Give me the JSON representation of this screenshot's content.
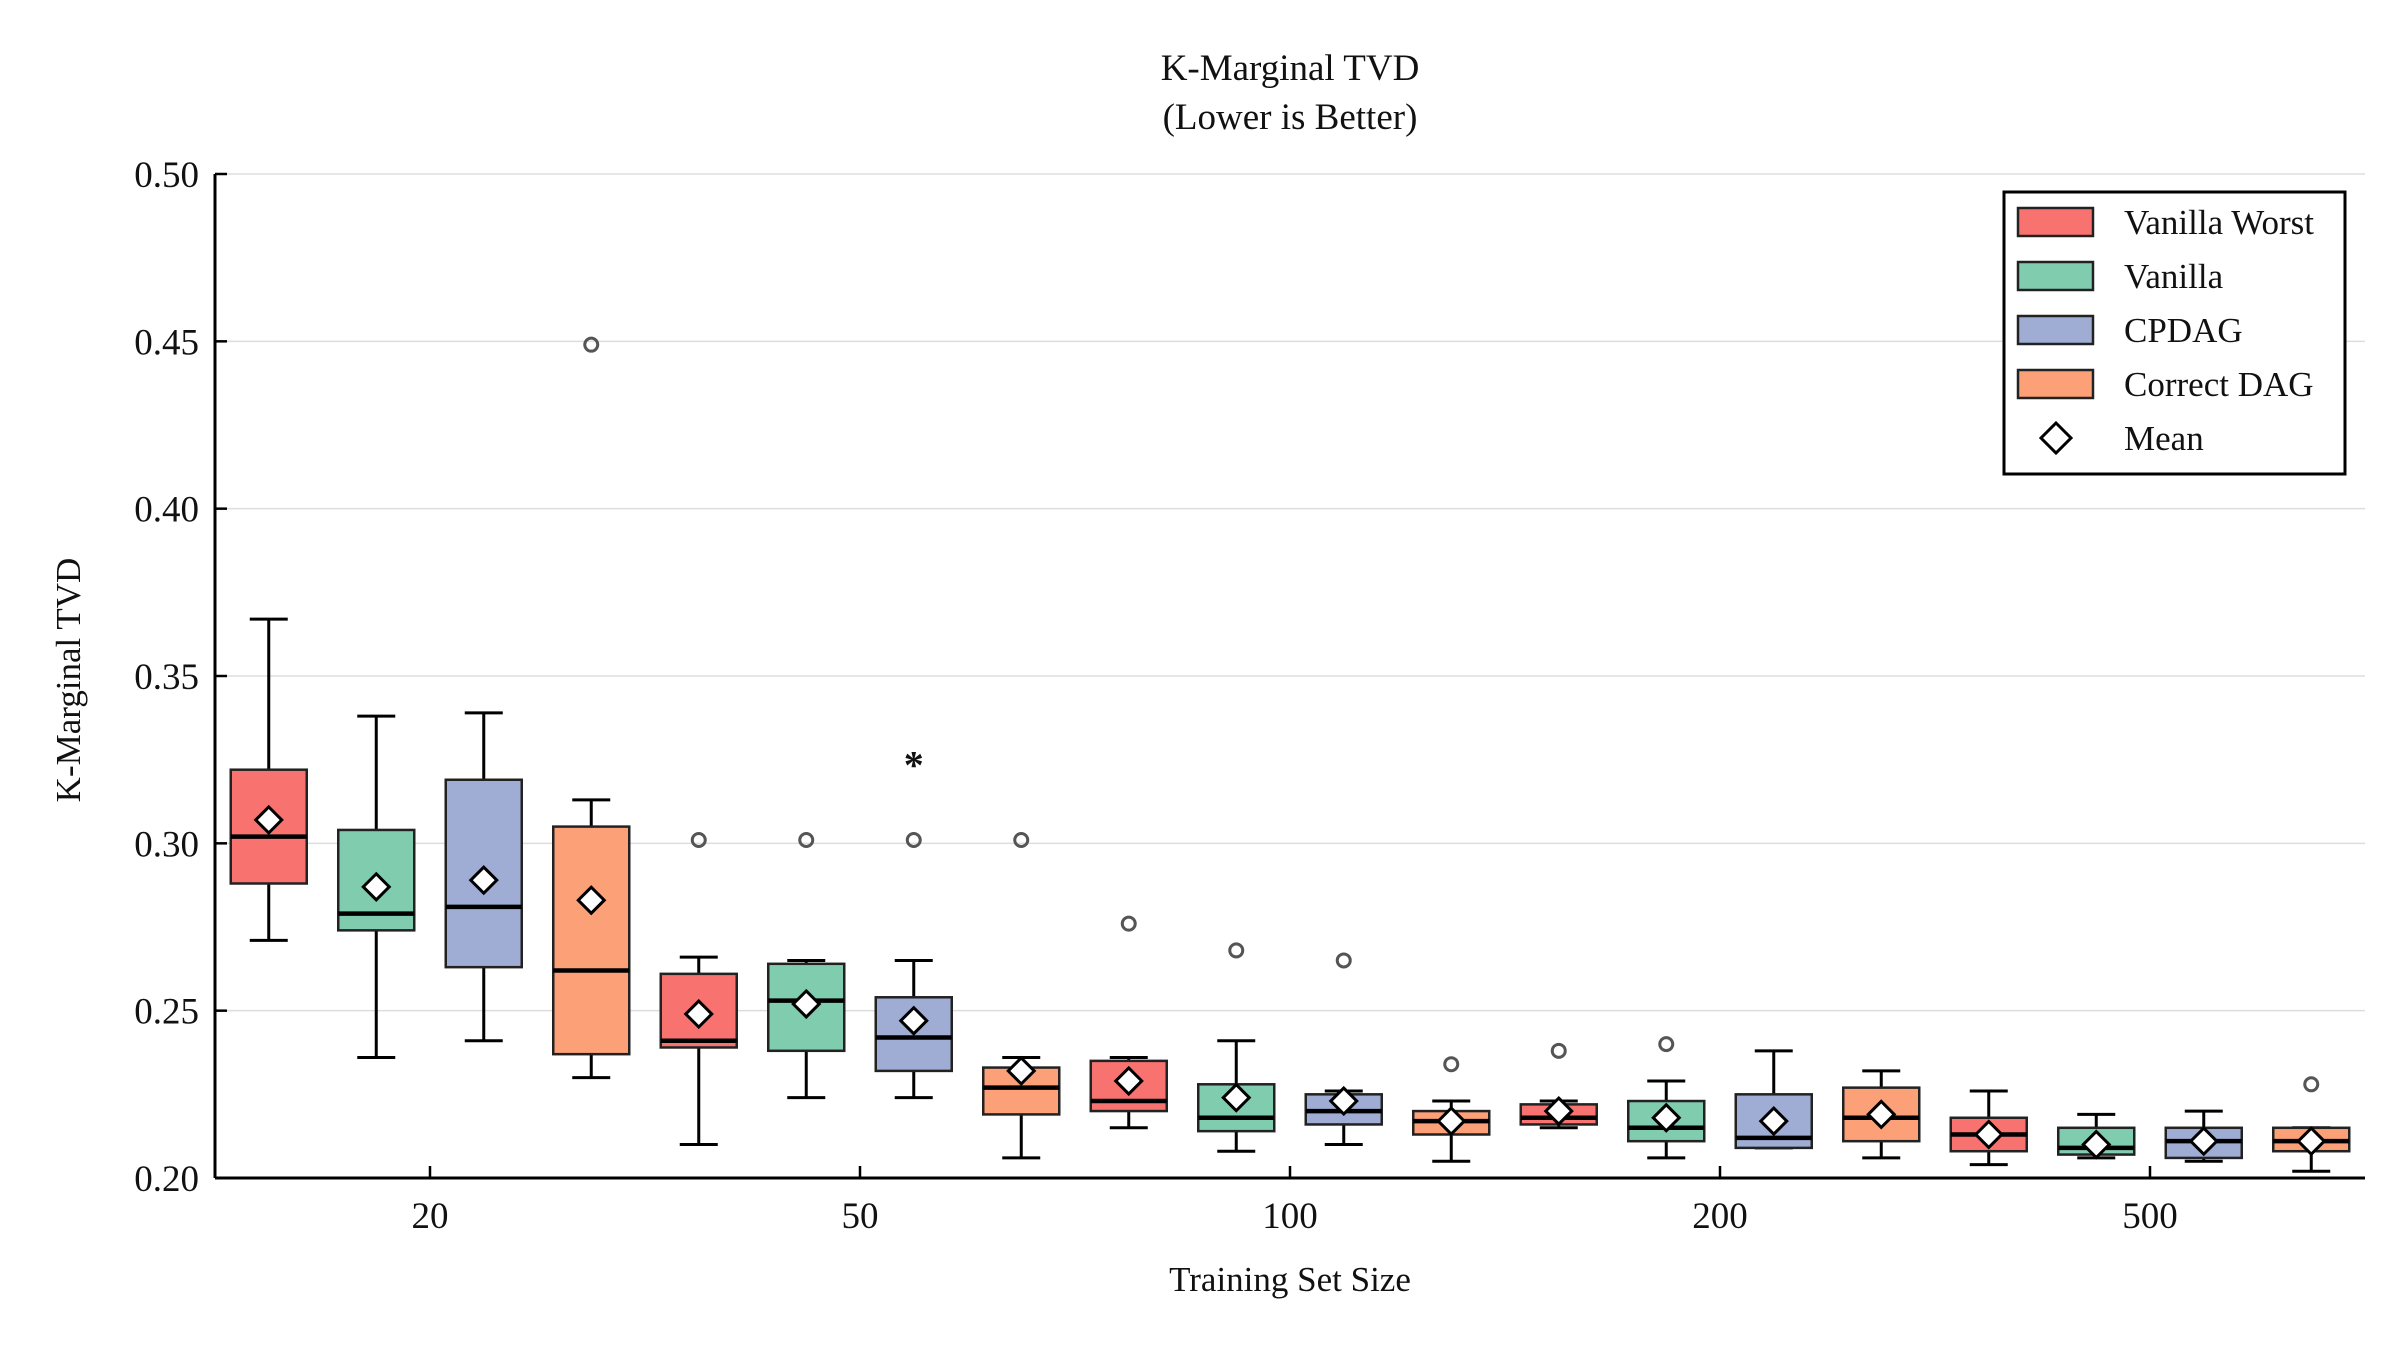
{
  "chart_data": {
    "type": "box",
    "title": "K-Marginal TVD",
    "subtitle": "(Lower is Better)",
    "xlabel": "Training Set Size",
    "ylabel": "K-Marginal TVD",
    "ylim": [
      0.2,
      0.5
    ],
    "yticks": [
      "0.20",
      "0.25",
      "0.30",
      "0.35",
      "0.40",
      "0.45",
      "0.50"
    ],
    "categories": [
      "20",
      "50",
      "100",
      "200",
      "500"
    ],
    "grid": true,
    "legend": "top-right",
    "legend_entries": [
      "Vanilla Worst",
      "Vanilla",
      "CPDAG",
      "Correct DAG",
      "Mean"
    ],
    "series": [
      {
        "name": "Vanilla Worst",
        "color": "#f8726f",
        "boxes": [
          {
            "whisker_low": 0.271,
            "q1": 0.288,
            "median": 0.302,
            "q3": 0.322,
            "whisker_high": 0.367,
            "mean": 0.307,
            "outliers": []
          },
          {
            "whisker_low": 0.21,
            "q1": 0.239,
            "median": 0.241,
            "q3": 0.261,
            "whisker_high": 0.266,
            "mean": 0.249,
            "outliers": [
              0.301
            ]
          },
          {
            "whisker_low": 0.215,
            "q1": 0.22,
            "median": 0.223,
            "q3": 0.235,
            "whisker_high": 0.236,
            "mean": 0.229,
            "outliers": [
              0.276
            ]
          },
          {
            "whisker_low": 0.215,
            "q1": 0.216,
            "median": 0.218,
            "q3": 0.222,
            "whisker_high": 0.223,
            "mean": 0.22,
            "outliers": [
              0.238
            ]
          },
          {
            "whisker_low": 0.204,
            "q1": 0.208,
            "median": 0.213,
            "q3": 0.218,
            "whisker_high": 0.226,
            "mean": 0.213,
            "outliers": []
          }
        ]
      },
      {
        "name": "Vanilla",
        "color": "#7fcdae",
        "boxes": [
          {
            "whisker_low": 0.236,
            "q1": 0.274,
            "median": 0.279,
            "q3": 0.304,
            "whisker_high": 0.338,
            "mean": 0.287,
            "outliers": []
          },
          {
            "whisker_low": 0.224,
            "q1": 0.238,
            "median": 0.253,
            "q3": 0.264,
            "whisker_high": 0.265,
            "mean": 0.252,
            "outliers": [
              0.301
            ]
          },
          {
            "whisker_low": 0.208,
            "q1": 0.214,
            "median": 0.218,
            "q3": 0.228,
            "whisker_high": 0.241,
            "mean": 0.224,
            "outliers": [
              0.268
            ]
          },
          {
            "whisker_low": 0.206,
            "q1": 0.211,
            "median": 0.215,
            "q3": 0.223,
            "whisker_high": 0.229,
            "mean": 0.218,
            "outliers": [
              0.24
            ]
          },
          {
            "whisker_low": 0.206,
            "q1": 0.207,
            "median": 0.209,
            "q3": 0.215,
            "whisker_high": 0.219,
            "mean": 0.21,
            "outliers": []
          }
        ]
      },
      {
        "name": "CPDAG",
        "color": "#9fadd5",
        "boxes": [
          {
            "whisker_low": 0.241,
            "q1": 0.263,
            "median": 0.281,
            "q3": 0.319,
            "whisker_high": 0.339,
            "mean": 0.289,
            "outliers": []
          },
          {
            "whisker_low": 0.224,
            "q1": 0.232,
            "median": 0.242,
            "q3": 0.254,
            "whisker_high": 0.265,
            "mean": 0.247,
            "outliers": [
              0.301
            ],
            "extreme": [
              0.326
            ]
          },
          {
            "whisker_low": 0.21,
            "q1": 0.216,
            "median": 0.22,
            "q3": 0.225,
            "whisker_high": 0.226,
            "mean": 0.223,
            "outliers": [
              0.265
            ]
          },
          {
            "whisker_low": 0.209,
            "q1": 0.209,
            "median": 0.212,
            "q3": 0.225,
            "whisker_high": 0.238,
            "mean": 0.217,
            "outliers": []
          },
          {
            "whisker_low": 0.205,
            "q1": 0.206,
            "median": 0.211,
            "q3": 0.215,
            "whisker_high": 0.22,
            "mean": 0.211,
            "outliers": []
          }
        ]
      },
      {
        "name": "Correct DAG",
        "color": "#fca077",
        "boxes": [
          {
            "whisker_low": 0.23,
            "q1": 0.237,
            "median": 0.262,
            "q3": 0.305,
            "whisker_high": 0.313,
            "mean": 0.283,
            "outliers": [
              0.449
            ]
          },
          {
            "whisker_low": 0.206,
            "q1": 0.219,
            "median": 0.227,
            "q3": 0.233,
            "whisker_high": 0.236,
            "mean": 0.232,
            "outliers": [
              0.301
            ]
          },
          {
            "whisker_low": 0.205,
            "q1": 0.213,
            "median": 0.217,
            "q3": 0.22,
            "whisker_high": 0.223,
            "mean": 0.217,
            "outliers": [
              0.234
            ]
          },
          {
            "whisker_low": 0.206,
            "q1": 0.211,
            "median": 0.218,
            "q3": 0.227,
            "whisker_high": 0.232,
            "mean": 0.219,
            "outliers": []
          },
          {
            "whisker_low": 0.202,
            "q1": 0.208,
            "median": 0.211,
            "q3": 0.215,
            "whisker_high": 0.215,
            "mean": 0.211,
            "outliers": [
              0.228
            ]
          }
        ]
      }
    ]
  }
}
